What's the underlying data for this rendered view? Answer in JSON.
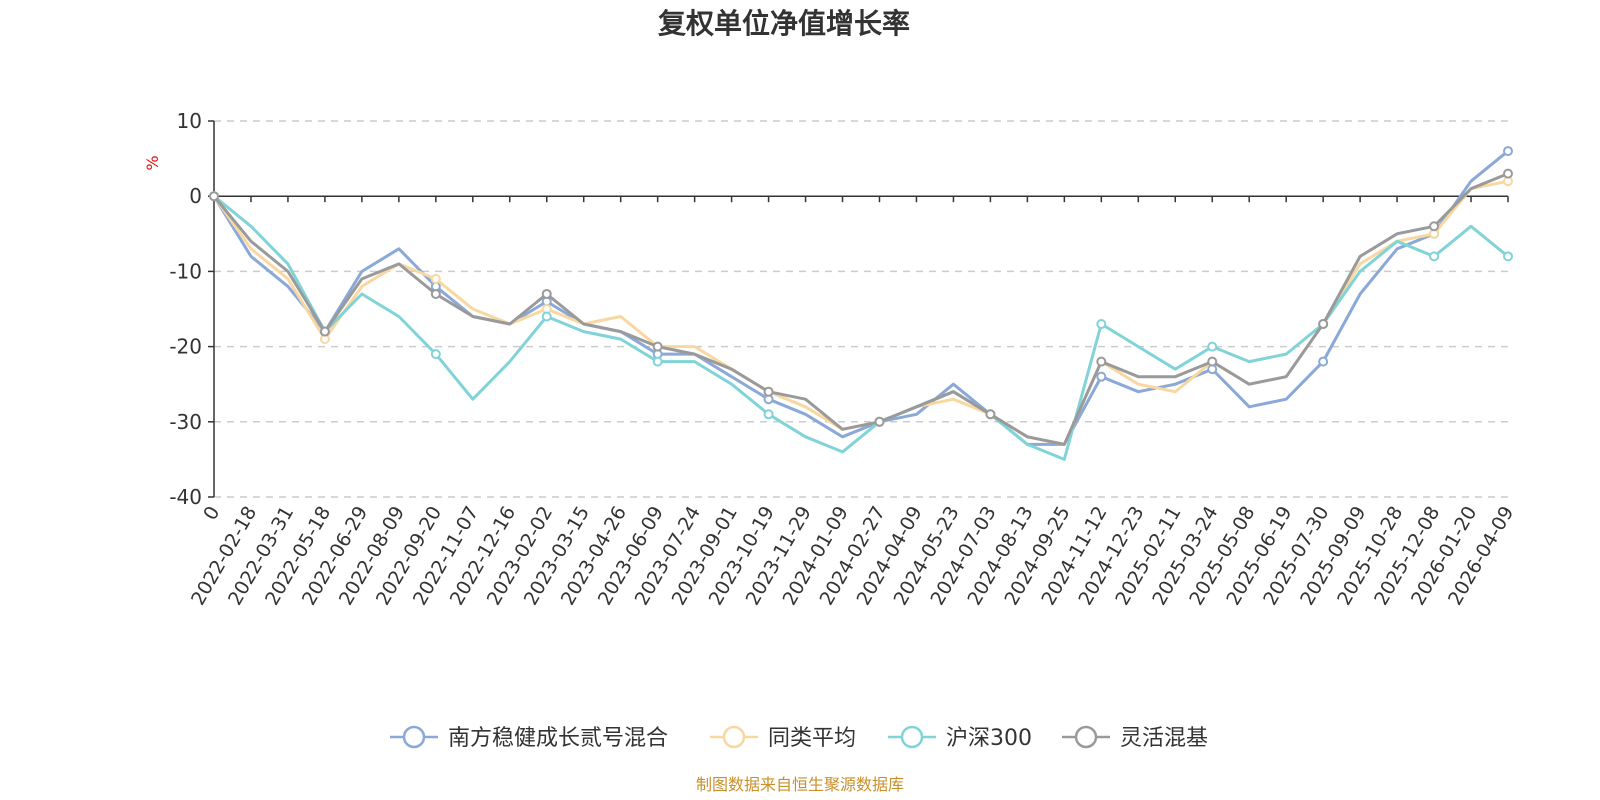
{
  "chart_data": {
    "type": "line",
    "title": "复权单位净值增长率",
    "ylabel": "%",
    "ylim": [
      -40,
      10
    ],
    "y_ticks": [
      "10",
      "0",
      "-10",
      "-20",
      "-30",
      "-40"
    ],
    "categories": [
      "0",
      "2022-02-18",
      "2022-03-31",
      "2022-05-18",
      "2022-06-29",
      "2022-08-09",
      "2022-09-20",
      "2022-11-07",
      "2022-12-16",
      "2023-02-02",
      "2023-03-15",
      "2023-04-26",
      "2023-06-09",
      "2023-07-24",
      "2023-09-01",
      "2023-10-19",
      "2023-11-29",
      "2024-01-09",
      "2024-02-27",
      "2024-04-09",
      "2024-05-23",
      "2024-07-03",
      "2024-08-13",
      "2024-09-25",
      "2024-11-12",
      "2024-12-23",
      "2025-02-11",
      "2025-03-24",
      "2025-05-08",
      "2025-06-19",
      "2025-07-30",
      "2025-09-09",
      "2025-10-28",
      "2025-12-08",
      "2026-01-20",
      "2026-04-09"
    ],
    "series": [
      {
        "name": "南方稳健成长贰号混合",
        "color": "#8aa8d8",
        "values": [
          0,
          -8,
          -12,
          -18,
          -10,
          -7,
          -12,
          -16,
          -17,
          -14,
          -17,
          -18,
          -21,
          -21,
          -24,
          -27,
          -29,
          -32,
          -30,
          -29,
          -25,
          -29,
          -33,
          -33,
          -24,
          -26,
          -25,
          -23,
          -28,
          -27,
          -22,
          -13,
          -7,
          -5,
          2,
          6
        ]
      },
      {
        "name": "同类平均",
        "color": "#f8d8a0",
        "values": [
          0,
          -7,
          -11,
          -19,
          -12,
          -9,
          -11,
          -15,
          -17,
          -15,
          -17,
          -16,
          -20,
          -20,
          -23,
          -26,
          -28,
          -31,
          -30,
          -28,
          -27,
          -29,
          -32,
          -33,
          -22,
          -25,
          -26,
          -22,
          -25,
          -24,
          -17,
          -9,
          -6,
          -5,
          1,
          2
        ]
      },
      {
        "name": "沪深300",
        "color": "#80d4d8",
        "values": [
          0,
          -4,
          -9,
          -18,
          -13,
          -16,
          -21,
          -27,
          -22,
          -16,
          -18,
          -19,
          -22,
          -22,
          -25,
          -29,
          -32,
          -34,
          -30,
          -28,
          -26,
          -29,
          -33,
          -35,
          -17,
          -20,
          -23,
          -20,
          -22,
          -21,
          -17,
          -10,
          -6,
          -8,
          -4,
          -8
        ]
      },
      {
        "name": "灵活混基",
        "color": "#9a9a9a",
        "values": [
          0,
          -6,
          -10,
          -18,
          -11,
          -9,
          -13,
          -16,
          -17,
          -13,
          -17,
          -18,
          -20,
          -21,
          -23,
          -26,
          -27,
          -31,
          -30,
          -28,
          -26,
          -29,
          -32,
          -33,
          -22,
          -24,
          -24,
          -22,
          -25,
          -24,
          -17,
          -8,
          -5,
          -4,
          1,
          3
        ]
      }
    ],
    "legend_position": "bottom-center",
    "grid": true
  },
  "source_note": "制图数据来自恒生聚源数据库"
}
